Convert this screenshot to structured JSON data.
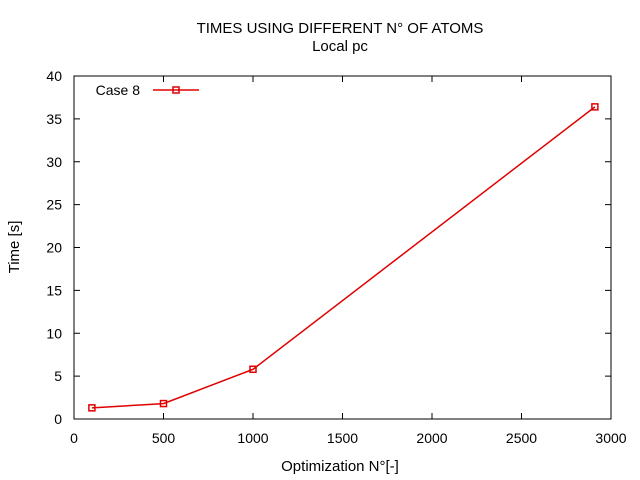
{
  "chart_data": {
    "type": "line",
    "title": "TIMES USING DIFFERENT N° OF ATOMS",
    "subtitle": "Local pc",
    "xlabel": "Optimization N°[-]",
    "ylabel": "Time [s]",
    "xlim": [
      0,
      3000
    ],
    "ylim": [
      0,
      40
    ],
    "xticks": [
      0,
      500,
      1000,
      1500,
      2000,
      2500,
      3000
    ],
    "yticks": [
      0,
      5,
      10,
      15,
      20,
      25,
      30,
      35,
      40
    ],
    "grid": false,
    "legend_position": "top-left",
    "series": [
      {
        "name": "Case 8",
        "color": "#e00000",
        "marker": "open-square",
        "x": [
          100,
          500,
          1000,
          2910
        ],
        "y": [
          1.3,
          1.8,
          5.8,
          36.4
        ]
      }
    ]
  }
}
